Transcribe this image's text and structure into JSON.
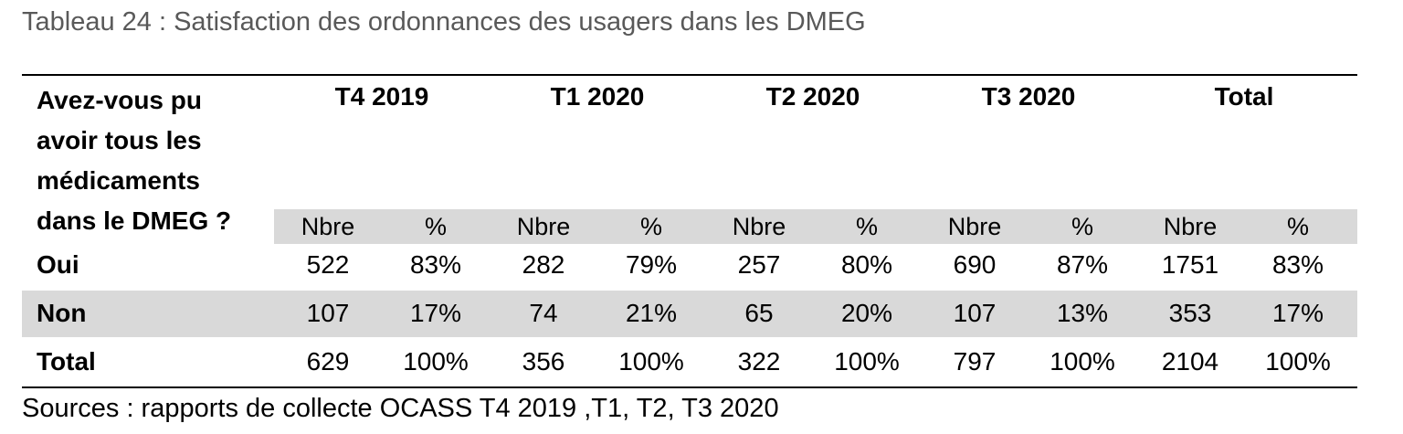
{
  "caption": "Tableau 24 : Satisfaction des ordonnances des usagers dans les DMEG",
  "table": {
    "stub_header_lines": [
      "Avez-vous pu",
      "avoir tous les",
      "médicaments",
      "dans le DMEG ?"
    ],
    "periods": [
      "T4 2019",
      "T1 2020",
      "T2 2020",
      "T3 2020",
      "Total"
    ],
    "subheaders": [
      "Nbre",
      "%"
    ],
    "rows": [
      {
        "label": "Oui",
        "values": [
          "522",
          "83%",
          "282",
          "79%",
          "257",
          "80%",
          "690",
          "87%",
          "1751",
          "83%"
        ]
      },
      {
        "label": "Non",
        "values": [
          "107",
          "17%",
          "74",
          "21%",
          "65",
          "20%",
          "107",
          "13%",
          "353",
          "17%"
        ]
      },
      {
        "label": "Total",
        "values": [
          "629",
          "100%",
          "356",
          "100%",
          "322",
          "100%",
          "797",
          "100%",
          "2104",
          "100%"
        ]
      }
    ]
  },
  "source": "Sources : rapports de collecte OCASS T4 2019 ,T1, T2, T3 2020",
  "colors": {
    "band": "#d9d9d9",
    "caption": "#595959"
  }
}
